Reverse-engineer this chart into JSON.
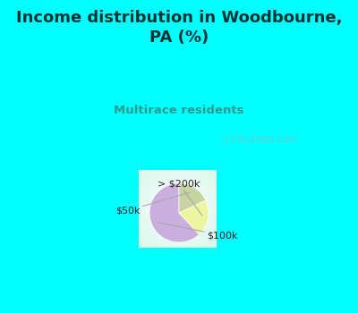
{
  "title": "Income distribution in Woodbourne,\nPA (%)",
  "subtitle": "Multirace residents",
  "title_color": "#003333",
  "subtitle_color": "#2a9d8f",
  "slices": [
    62,
    20,
    18
  ],
  "labels": [
    "$100k",
    "> $200k",
    "$50k"
  ],
  "colors": [
    "#c9aede",
    "#eef5a0",
    "#c5d4a0"
  ],
  "background_cyan": "#00ffff",
  "startangle": 90,
  "watermark": "ⓘ City-Data.com"
}
